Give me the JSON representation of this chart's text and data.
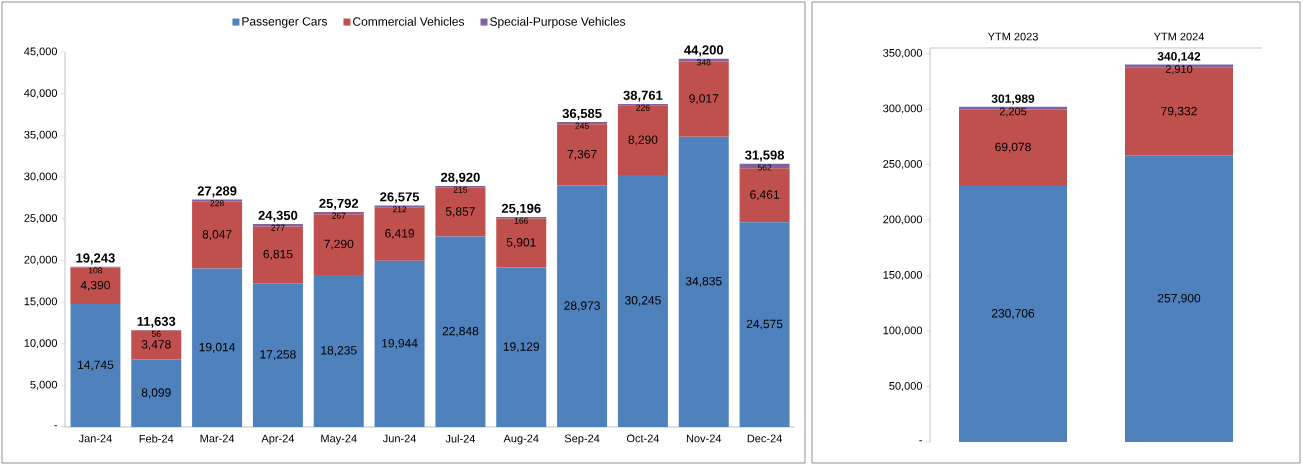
{
  "chart_data": [
    {
      "type": "bar",
      "stacked": true,
      "legend": "top",
      "categories": [
        "Jan-24",
        "Feb-24",
        "Mar-24",
        "Apr-24",
        "May-24",
        "Jun-24",
        "Jul-24",
        "Aug-24",
        "Sep-24",
        "Oct-24",
        "Nov-24",
        "Dec-24"
      ],
      "series": [
        {
          "name": "Passenger Cars",
          "color": "#4f81bd",
          "values": [
            14745,
            8099,
            19014,
            17258,
            18235,
            19944,
            22848,
            19129,
            28973,
            30245,
            34835,
            24575
          ],
          "value_labels": [
            "14,745",
            "8,099",
            "19,014",
            "17,258",
            "18,235",
            "19,944",
            "22,848",
            "19,129",
            "28,973",
            "30,245",
            "34,835",
            "24,575"
          ]
        },
        {
          "name": "Commercial Vehicles",
          "color": "#c0504d",
          "values": [
            4390,
            3478,
            8047,
            6815,
            7290,
            6419,
            5857,
            5901,
            7367,
            8290,
            9017,
            6461
          ],
          "value_labels": [
            "4,390",
            "3,478",
            "8,047",
            "6,815",
            "7,290",
            "6,419",
            "5,857",
            "5,901",
            "7,367",
            "8,290",
            "9,017",
            "6,461"
          ]
        },
        {
          "name": "Special-Purpose Vehicles",
          "color": "#8064a2",
          "values": [
            108,
            56,
            228,
            277,
            267,
            212,
            215,
            166,
            245,
            226,
            348,
            562
          ],
          "value_labels": [
            "108",
            "56",
            "228",
            "277",
            "267",
            "212",
            "215",
            "166",
            "245",
            "226",
            "348",
            "562"
          ]
        }
      ],
      "totals": [
        "19,243",
        "11,633",
        "27,289",
        "24,350",
        "25,792",
        "26,575",
        "28,920",
        "25,196",
        "36,585",
        "38,761",
        "44,200",
        "31,598"
      ],
      "ylim": [
        0,
        45000
      ],
      "yticks": [
        {
          "value": 0,
          "label": "-"
        },
        {
          "value": 5000,
          "label": "5,000"
        },
        {
          "value": 10000,
          "label": "10,000"
        },
        {
          "value": 15000,
          "label": "15,000"
        },
        {
          "value": 20000,
          "label": "20,000"
        },
        {
          "value": 25000,
          "label": "25,000"
        },
        {
          "value": 30000,
          "label": "30,000"
        },
        {
          "value": 35000,
          "label": "35,000"
        },
        {
          "value": 40000,
          "label": "40,000"
        },
        {
          "value": 45000,
          "label": "45,000"
        }
      ]
    },
    {
      "type": "bar",
      "stacked": true,
      "categories": [
        "YTM 2023",
        "YTM 2024"
      ],
      "series": [
        {
          "color": "#4f81bd",
          "values": [
            230706,
            257900
          ],
          "value_labels": [
            "230,706",
            "257,900"
          ]
        },
        {
          "color": "#c0504d",
          "values": [
            69078,
            79332
          ],
          "value_labels": [
            "69,078",
            "79,332"
          ]
        },
        {
          "color": "#8064a2",
          "values": [
            2205,
            2910
          ],
          "value_labels": [
            "2,205",
            "2,910"
          ]
        }
      ],
      "totals": [
        "301,989",
        "340,142"
      ],
      "ylim": [
        0,
        355000
      ],
      "yticks": [
        {
          "value": 0,
          "label": "-"
        },
        {
          "value": 50000,
          "label": "50,000"
        },
        {
          "value": 100000,
          "label": "100,000"
        },
        {
          "value": 150000,
          "label": "150,000"
        },
        {
          "value": 200000,
          "label": "200,000"
        },
        {
          "value": 250000,
          "label": "250,000"
        },
        {
          "value": 300000,
          "label": "300,000"
        },
        {
          "value": 350000,
          "label": "350,000"
        }
      ]
    }
  ]
}
